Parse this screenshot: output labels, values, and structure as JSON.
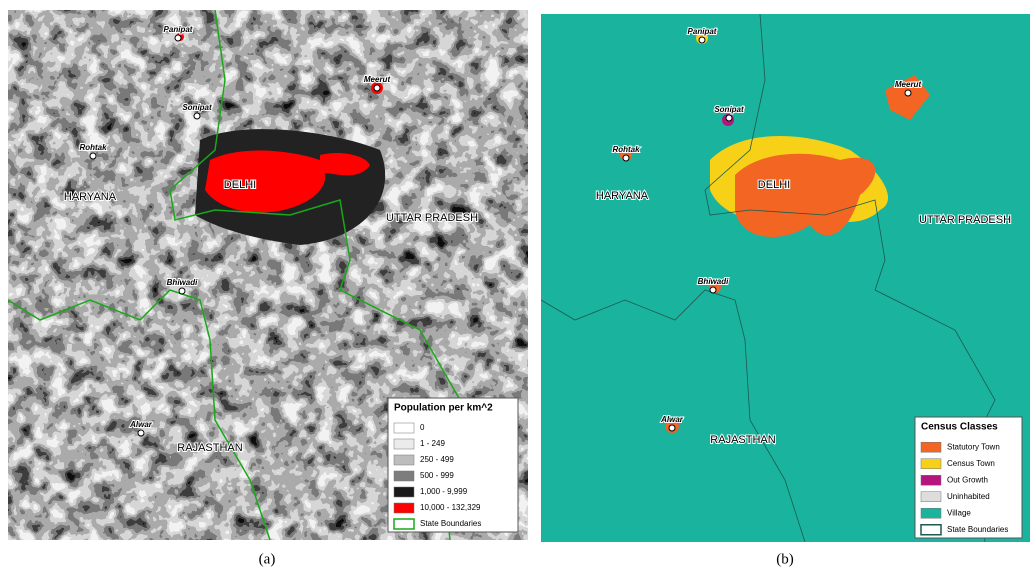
{
  "panel_a": {
    "caption": "(a)",
    "cities": [
      "Panipat",
      "Meerut",
      "Sonipat",
      "Rohtak",
      "Bhiwadi",
      "Alwar"
    ],
    "regions": [
      "HARYANA",
      "DELHI",
      "UTTAR PRADESH",
      "RAJASTHAN"
    ],
    "legend": {
      "title": "Population per km^2",
      "items": [
        "0",
        "1 - 249",
        "250 - 499",
        "500 - 999",
        "1,000 - 9,999",
        "10,000 - 132,329",
        "State Boundaries"
      ]
    }
  },
  "panel_b": {
    "caption": "(b)",
    "cities": [
      "Panipat",
      "Meerut",
      "Sonipat",
      "Rohtak",
      "Bhiwadi",
      "Alwar"
    ],
    "regions": [
      "HARYANA",
      "DELHI",
      "UTTAR PRADESH",
      "RAJASTHAN"
    ],
    "legend": {
      "title": "Census Classes",
      "items": [
        "Statutory Town",
        "Census Town",
        "Out Growth",
        "Uninhabited",
        "Village",
        "State Boundaries"
      ]
    }
  }
}
